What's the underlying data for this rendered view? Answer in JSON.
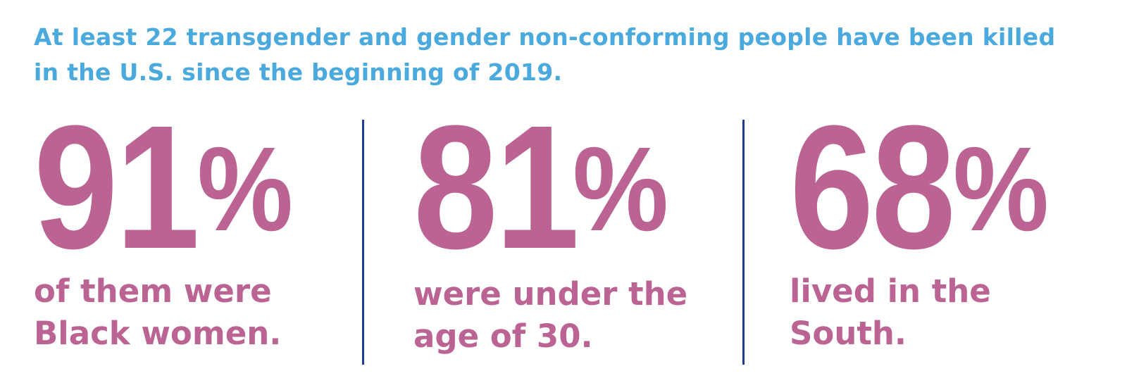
{
  "headline": {
    "line1": "At least 22 transgender and gender non-conforming people have been killed",
    "line2": "in the U.S. since the beginning of 2019."
  },
  "stats": [
    {
      "number": "91",
      "unit": "%",
      "caption_line1": "of them were",
      "caption_line2": "Black women."
    },
    {
      "number": "81",
      "unit": "%",
      "caption_line1": "were under the",
      "caption_line2": "age of 30."
    },
    {
      "number": "68",
      "unit": "%",
      "caption_line1": "lived in the",
      "caption_line2": "South."
    }
  ],
  "colors": {
    "headline": "#4aa9dd",
    "stat": "#bb6493",
    "divider": "#1f3e94",
    "background": "#ffffff"
  }
}
